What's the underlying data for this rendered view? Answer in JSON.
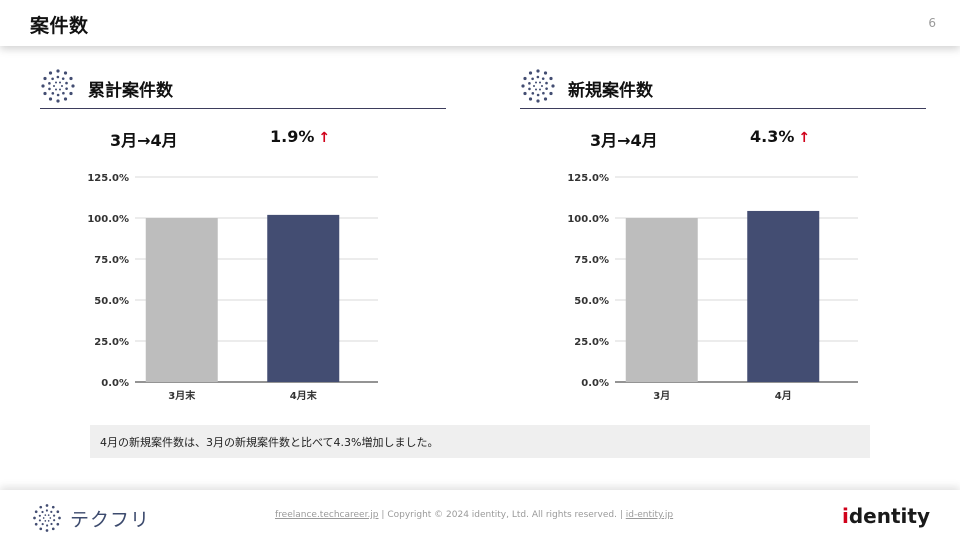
{
  "header": {
    "title": "案件数",
    "page_number": "6"
  },
  "panels": [
    {
      "title": "累計案件数",
      "period": "3月→4月",
      "change": "1.9%",
      "arrow": "↑",
      "chart": {
        "ytick_labels": [
          "125.0%",
          "100.0%",
          "75.0%",
          "50.0%",
          "25.0%",
          "0.0%"
        ],
        "categories": [
          "3月末",
          "4月末"
        ]
      }
    },
    {
      "title": "新規案件数",
      "period": "3月→4月",
      "change": "4.3%",
      "arrow": "↑",
      "chart": {
        "ytick_labels": [
          "125.0%",
          "100.0%",
          "75.0%",
          "50.0%",
          "25.0%",
          "0.0%"
        ],
        "categories": [
          "3月",
          "4月"
        ]
      }
    }
  ],
  "chart_data": [
    {
      "type": "bar",
      "categories": [
        "3月末",
        "4月末"
      ],
      "values": [
        100.0,
        101.9
      ],
      "ylim": [
        0,
        125
      ],
      "yticks": [
        0,
        25,
        50,
        75,
        100,
        125
      ],
      "grid": true,
      "colors": [
        "#bdbdbd",
        "#434d72"
      ]
    },
    {
      "type": "bar",
      "categories": [
        "3月",
        "4月"
      ],
      "values": [
        100.0,
        104.3
      ],
      "ylim": [
        0,
        125
      ],
      "yticks": [
        0,
        25,
        50,
        75,
        100,
        125
      ],
      "grid": true,
      "colors": [
        "#bdbdbd",
        "#434d72"
      ]
    }
  ],
  "note": {
    "text": "4月の新規案件数は、3月の新規案件数と比べて4.3%増加しました。"
  },
  "footer": {
    "logo_text": "テクフリ",
    "link1": "freelance.techcareer.jp",
    "separator": "|",
    "copyright": "Copyright © 2024 identity, Ltd. All rights reserved.",
    "link2": "id-entity.jp",
    "brand_prefix": "i",
    "brand_rest": "dentity"
  },
  "colors": {
    "accent_dark": "#434d72",
    "bar_gray": "#bdbdbd",
    "arrow_red": "#d0021b"
  }
}
